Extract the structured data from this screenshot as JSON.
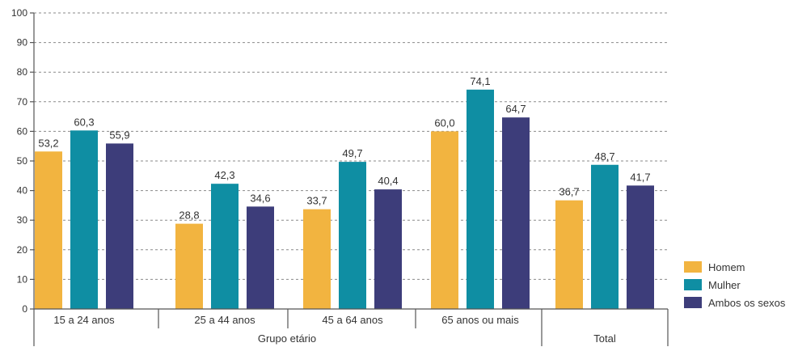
{
  "chart_data": {
    "type": "bar",
    "categories": [
      "15 a 24 anos",
      "25 a 44 anos",
      "45 a 64 anos",
      "65 anos ou mais",
      "Total"
    ],
    "series": [
      {
        "name": "Homem",
        "values": [
          53.2,
          28.8,
          33.7,
          60.0,
          36.7
        ],
        "labels": [
          "53,2",
          "28,8",
          "33,7",
          "60,0",
          "36,7"
        ],
        "color": "#f2b440"
      },
      {
        "name": "Mulher",
        "values": [
          60.3,
          42.3,
          49.7,
          74.1,
          48.7
        ],
        "labels": [
          "60,3",
          "42,3",
          "49,7",
          "74,1",
          "48,7"
        ],
        "color": "#0f8ea3"
      },
      {
        "name": "Ambos os sexos",
        "values": [
          55.9,
          34.6,
          40.4,
          64.7,
          41.7
        ],
        "labels": [
          "55,9",
          "34,6",
          "40,4",
          "64,7",
          "41,7"
        ],
        "color": "#3d3d7a"
      }
    ],
    "group_label": "Grupo etário",
    "ylim": [
      0,
      100
    ],
    "yticks": [
      0,
      10,
      20,
      30,
      40,
      50,
      60,
      70,
      80,
      90,
      100
    ],
    "grid": true,
    "legend_position": "bottom-right"
  }
}
